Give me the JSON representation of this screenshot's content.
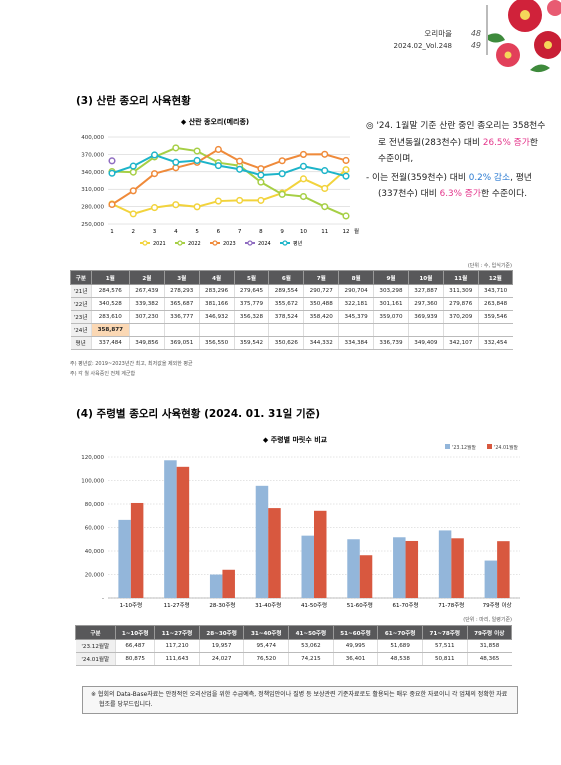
{
  "header": {
    "brand": "오리마을",
    "issue": "2024.02_Vol.248",
    "page_left": "48",
    "page_right": "49"
  },
  "section3": {
    "title": "(3) 산란 종오리 사육현황",
    "chart": {
      "type": "line",
      "title": "◆ 산란 종오리(메리종)",
      "categories": [
        "1",
        "2",
        "3",
        "4",
        "5",
        "6",
        "7",
        "8",
        "9",
        "10",
        "11",
        "12"
      ],
      "x_unit": "월",
      "ylim": [
        250000,
        400000
      ],
      "yticks": [
        {
          "value": 250000,
          "label": "250,000"
        },
        {
          "value": 280000,
          "label": "280,000"
        },
        {
          "value": 310000,
          "label": "310,000"
        },
        {
          "value": 340000,
          "label": "340,000"
        },
        {
          "value": 370000,
          "label": "370,000"
        },
        {
          "value": 400000,
          "label": "400,000"
        }
      ],
      "grid": true,
      "series": [
        {
          "name": "2021",
          "color": "#f2d33c",
          "values": [
            284576,
            267439,
            278293,
            283296,
            279645,
            289554,
            290727,
            290704,
            303298,
            327887,
            311309,
            343710
          ]
        },
        {
          "name": "2022",
          "color": "#a6cf45",
          "values": [
            340528,
            339382,
            365687,
            381166,
            375779,
            355672,
            350488,
            322181,
            301161,
            297360,
            279876,
            263848
          ]
        },
        {
          "name": "2023",
          "color": "#ef8a3a",
          "values": [
            283610,
            307230,
            336777,
            346932,
            356328,
            378524,
            358420,
            345379,
            359070,
            369939,
            370209,
            359546
          ]
        },
        {
          "name": "2024",
          "color": "#8f6cc0",
          "values": [
            358877,
            null,
            null,
            null,
            null,
            null,
            null,
            null,
            null,
            null,
            null,
            null
          ]
        },
        {
          "name": "평년",
          "color": "#1db4c9",
          "values": [
            337484,
            349856,
            369051,
            356550,
            359542,
            350626,
            344332,
            334384,
            336739,
            349409,
            342107,
            332454
          ]
        }
      ]
    },
    "summary": [
      [
        {
          "text": "◎ '24. 1월말 기준 산란 중인 종오리는 358천수로 전년동월(283천수) 대비 "
        },
        {
          "text": "26.5% 증가",
          "color": "#e4358b"
        },
        {
          "text": "한 수준이며,"
        }
      ],
      [
        {
          "text": "- 이는 전월(359천수) 대비 "
        },
        {
          "text": "0.2% 감소",
          "color": "#2a7ad1"
        },
        {
          "text": ", 평년(337천수) 대비 "
        },
        {
          "text": "6.3% 증가",
          "color": "#e4358b"
        },
        {
          "text": "한 수준이다."
        }
      ]
    ],
    "table": {
      "unit": "(단위 : 수, 입식기준)",
      "header": [
        "구분",
        "1월",
        "2월",
        "3월",
        "4월",
        "5월",
        "6월",
        "7월",
        "8월",
        "9월",
        "10월",
        "11월",
        "12월"
      ],
      "rows": [
        [
          "'21년",
          "284,576",
          "267,439",
          "278,293",
          "283,296",
          "279,645",
          "289,554",
          "290,727",
          "290,704",
          "303,298",
          "327,887",
          "311,309",
          "343,710"
        ],
        [
          "'22년",
          "340,528",
          "339,382",
          "365,687",
          "381,166",
          "375,779",
          "355,672",
          "350,488",
          "322,181",
          "301,161",
          "297,360",
          "279,876",
          "263,848"
        ],
        [
          "'23년",
          "283,610",
          "307,230",
          "336,777",
          "346,932",
          "356,328",
          "378,524",
          "358,420",
          "345,379",
          "359,070",
          "369,939",
          "370,209",
          "359,546"
        ],
        [
          "'24년",
          "358,877",
          "",
          "",
          "",
          "",
          "",
          "",
          "",
          "",
          "",
          "",
          ""
        ],
        [
          "평년",
          "337,484",
          "349,856",
          "369,051",
          "356,550",
          "359,542",
          "350,626",
          "344,332",
          "334,384",
          "336,739",
          "349,409",
          "342,107",
          "332,454"
        ]
      ]
    },
    "notes": [
      "주) 평년값: 2019~2023년간 최고, 최저값을 제외한 평균",
      "주) 각 월 사육중인 전체 계군합"
    ]
  },
  "section4": {
    "title": "(4) 주령별 종오리 사육현황 (2024. 01. 31일 기준)",
    "chart": {
      "type": "bar",
      "title": "◆ 주령별 마릿수 비교",
      "categories": [
        "1-10주령",
        "11-27주령",
        "28-30주령",
        "31-40주령",
        "41-50주령",
        "51-60주령",
        "61-70주령",
        "71-78주령",
        "79주령 이상"
      ],
      "ylim": [
        0,
        120000
      ],
      "yticks": [
        {
          "value": 0,
          "label": "-"
        },
        {
          "value": 20000,
          "label": "20,000"
        },
        {
          "value": 40000,
          "label": "40,000"
        },
        {
          "value": 60000,
          "label": "60,000"
        },
        {
          "value": 80000,
          "label": "80,000"
        },
        {
          "value": 100000,
          "label": "100,000"
        },
        {
          "value": 120000,
          "label": "120,000"
        }
      ],
      "grid": true,
      "series": [
        {
          "name": "'23.12월말",
          "color": "#93b6da",
          "values": [
            66487,
            117210,
            19957,
            95474,
            53062,
            49995,
            51689,
            57511,
            31858
          ]
        },
        {
          "name": "'24.01월말",
          "color": "#d8583f",
          "values": [
            80875,
            111643,
            24027,
            76520,
            74215,
            36401,
            48538,
            50811,
            48365
          ]
        }
      ]
    },
    "table": {
      "unit": "(단위 : 마리, 일령기준)",
      "header": [
        "구분",
        "1~10주령",
        "11~27주령",
        "28~30주령",
        "31~40주령",
        "41~50주령",
        "51~60주령",
        "61~70주령",
        "71~78주령",
        "79주령 이상"
      ],
      "rows": [
        [
          "'23.12월말",
          "66,487",
          "117,210",
          "19,957",
          "95,474",
          "53,062",
          "49,995",
          "51,689",
          "57,511",
          "31,858"
        ],
        [
          "'24.01월말",
          "80,875",
          "111,643",
          "24,027",
          "76,520",
          "74,215",
          "36,401",
          "48,538",
          "50,811",
          "48,365"
        ]
      ]
    }
  },
  "footer_note": "※ 협회의 Data-Base자료는 안정적인 오리산업을 위한 수급예측, 정책입안이나 질병 등 보상관련 기준자료로도 활용되는 매우 중요한 자료이니 각 업체의 정확한 자료협조를 당부드립니다."
}
